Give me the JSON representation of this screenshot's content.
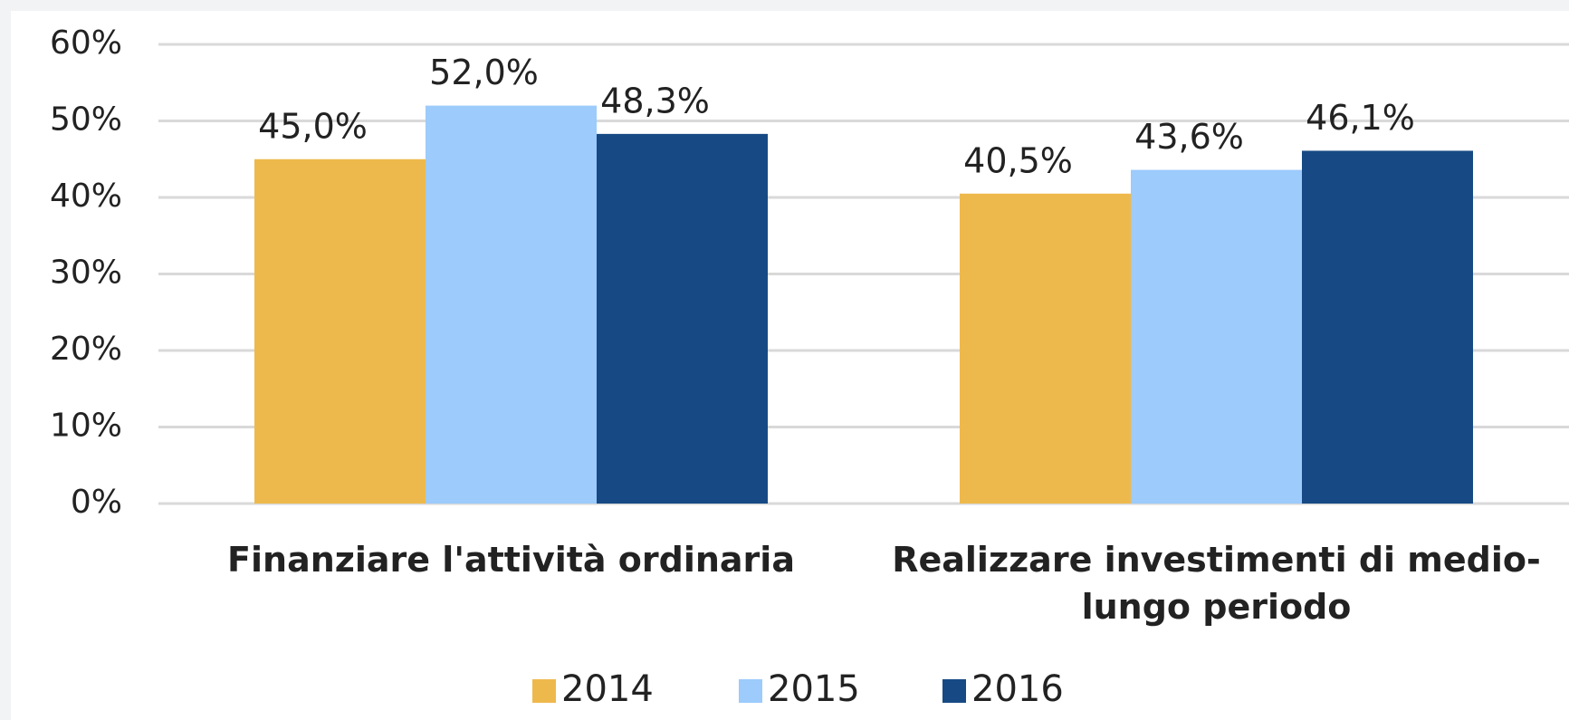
{
  "chart_data": {
    "type": "bar",
    "categories": [
      "Finanziare l'attività ordinaria",
      "Realizzare investimenti di medio-lungo periodo"
    ],
    "series": [
      {
        "name": "2014",
        "color": "#eeb94c",
        "values": [
          45.0,
          40.5
        ],
        "value_labels": [
          "45,0%",
          "40,5%"
        ]
      },
      {
        "name": "2015",
        "color": "#9ccbfc",
        "values": [
          52.0,
          43.6
        ],
        "value_labels": [
          "52,0%",
          "43,6%"
        ]
      },
      {
        "name": "2016",
        "color": "#174a84",
        "values": [
          48.3,
          46.1
        ],
        "value_labels": [
          "48,3%",
          "46,1%"
        ]
      }
    ],
    "ylim": [
      0,
      60
    ],
    "yticks": [
      {
        "value": 0,
        "label": "0%"
      },
      {
        "value": 10,
        "label": "10%"
      },
      {
        "value": 20,
        "label": "20%"
      },
      {
        "value": 30,
        "label": "30%"
      },
      {
        "value": 40,
        "label": "40%"
      },
      {
        "value": 50,
        "label": "50%"
      },
      {
        "value": 60,
        "label": "60%"
      }
    ],
    "grid": true,
    "legend": "bottom"
  }
}
